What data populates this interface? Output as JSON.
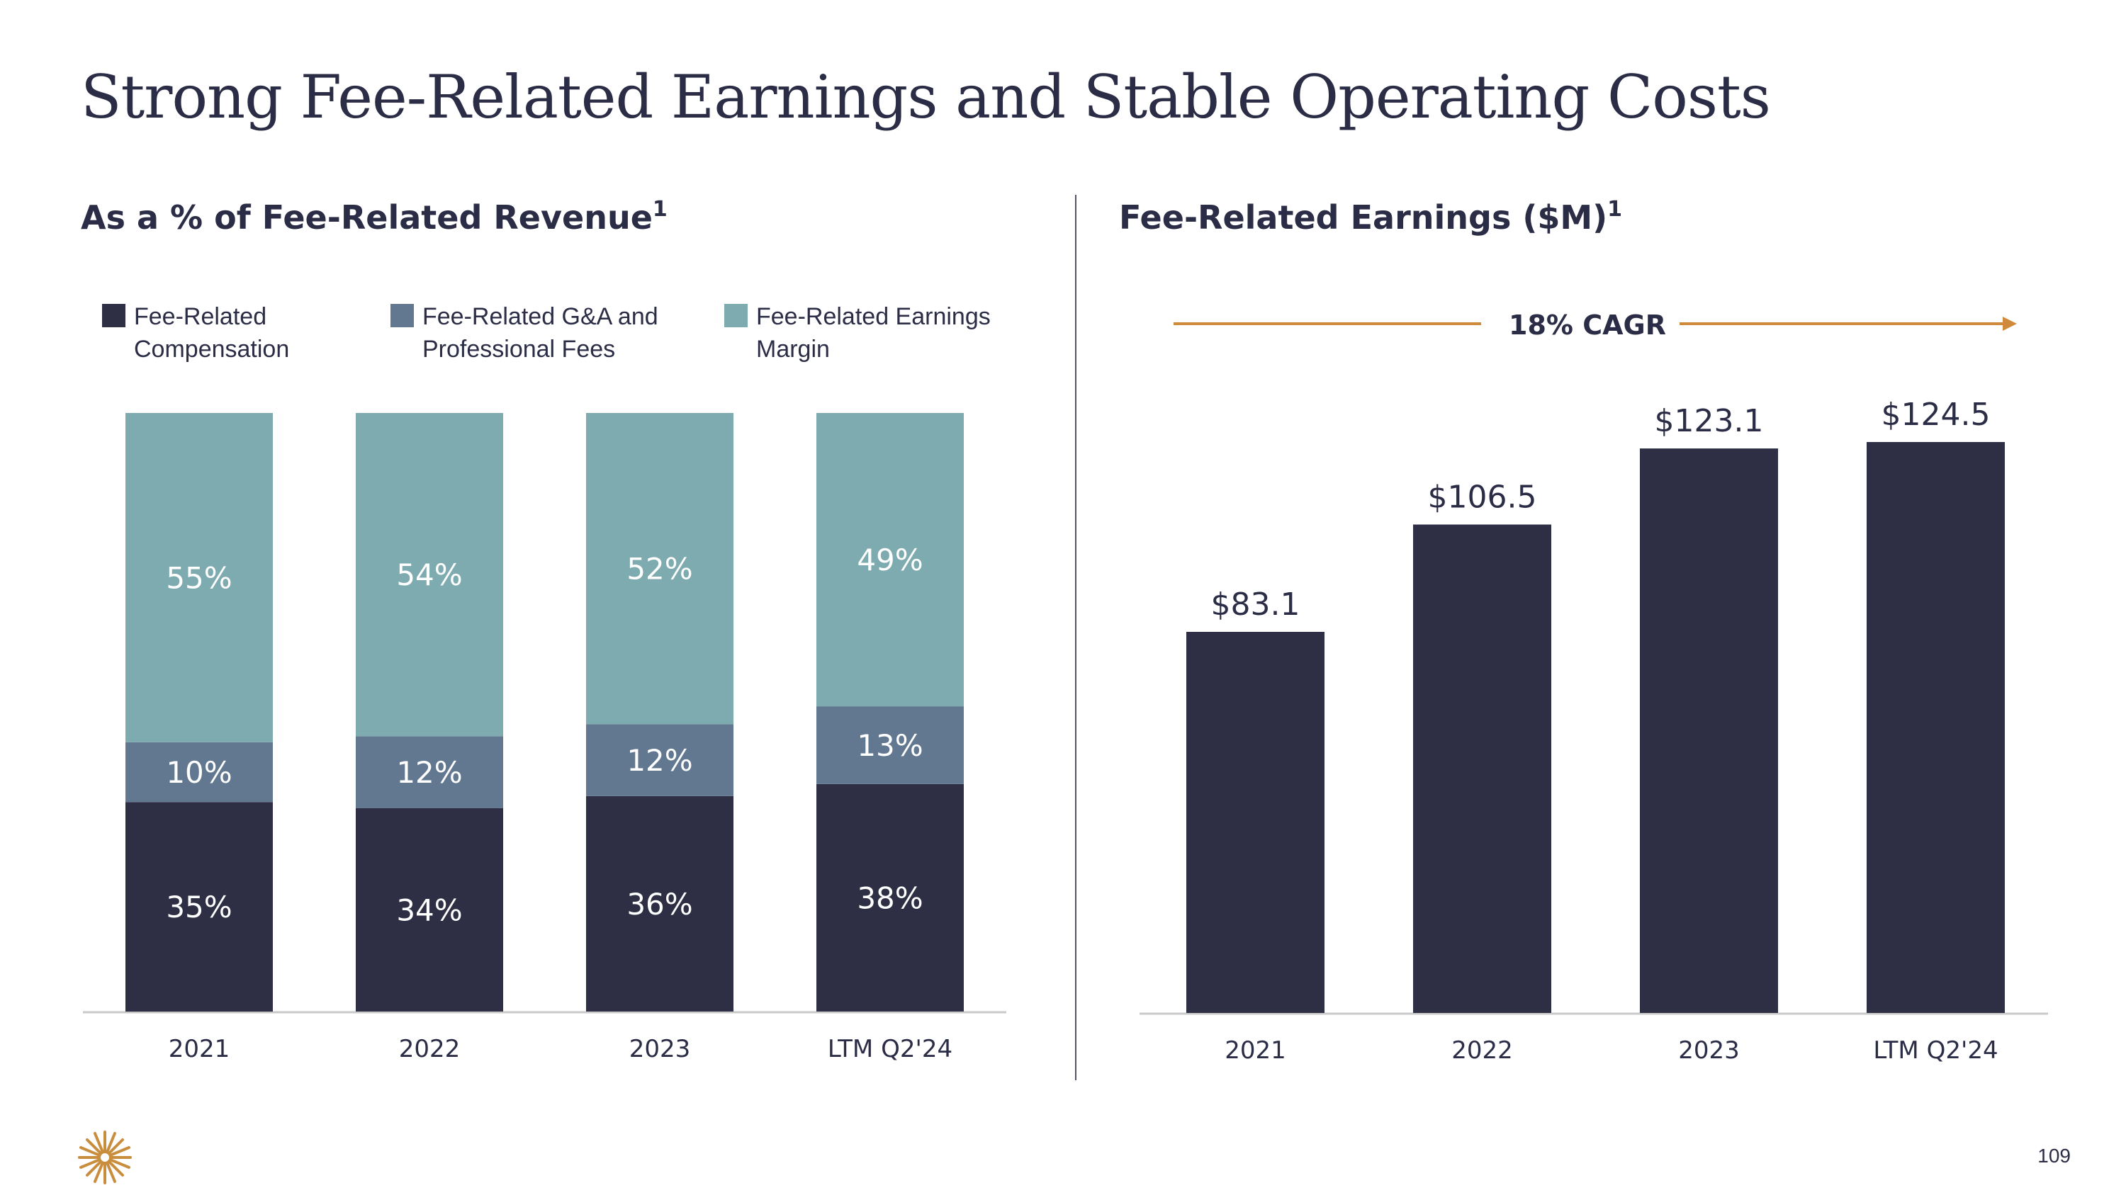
{
  "slide": {
    "title": "Strong Fee-Related Earnings and Stable Operating Costs",
    "page_number": "109",
    "colors": {
      "navy": "#2e2e44",
      "slate": "#627891",
      "teal": "#7eabb0",
      "orange": "#d08a3c"
    }
  },
  "left_panel": {
    "title": "As a % of Fee-Related Revenue",
    "footnote": "1",
    "legend": [
      {
        "label": "Fee-Related Compensation",
        "color": "#2e2e44"
      },
      {
        "label": "Fee-Related G&A and Professional Fees",
        "color": "#627891"
      },
      {
        "label": "Fee-Related Earnings Margin",
        "color": "#7eabb0"
      }
    ]
  },
  "right_panel": {
    "title": "Fee-Related Earnings ($M)",
    "footnote": "1",
    "cagr_label": "18% CAGR"
  },
  "chart_data": [
    {
      "type": "bar",
      "stacked": true,
      "title": "As a % of Fee-Related Revenue",
      "categories": [
        "2021",
        "2022",
        "2023",
        "LTM Q2'24"
      ],
      "series": [
        {
          "name": "Fee-Related Compensation",
          "values": [
            35,
            34,
            36,
            38
          ],
          "labels": [
            "35%",
            "34%",
            "36%",
            "38%"
          ],
          "color": "#2e2e44"
        },
        {
          "name": "Fee-Related G&A and Professional Fees",
          "values": [
            10,
            12,
            12,
            13
          ],
          "labels": [
            "10%",
            "12%",
            "12%",
            "13%"
          ],
          "color": "#627891"
        },
        {
          "name": "Fee-Related Earnings Margin",
          "values": [
            55,
            54,
            52,
            49
          ],
          "labels": [
            "55%",
            "54%",
            "52%",
            "49%"
          ],
          "color": "#7eabb0"
        }
      ],
      "ylim": [
        0,
        100
      ],
      "xlabel": "",
      "ylabel": "",
      "grid": false,
      "legend_position": "top"
    },
    {
      "type": "bar",
      "title": "Fee-Related Earnings ($M)",
      "categories": [
        "2021",
        "2022",
        "2023",
        "LTM Q2'24"
      ],
      "values": [
        83.1,
        106.5,
        123.1,
        124.5
      ],
      "labels": [
        "$83.1",
        "$106.5",
        "$123.1",
        "$124.5"
      ],
      "ylim": [
        0,
        124.5
      ],
      "color": "#2e2e44",
      "annotation": "18% CAGR",
      "xlabel": "",
      "ylabel": "",
      "grid": false
    }
  ]
}
